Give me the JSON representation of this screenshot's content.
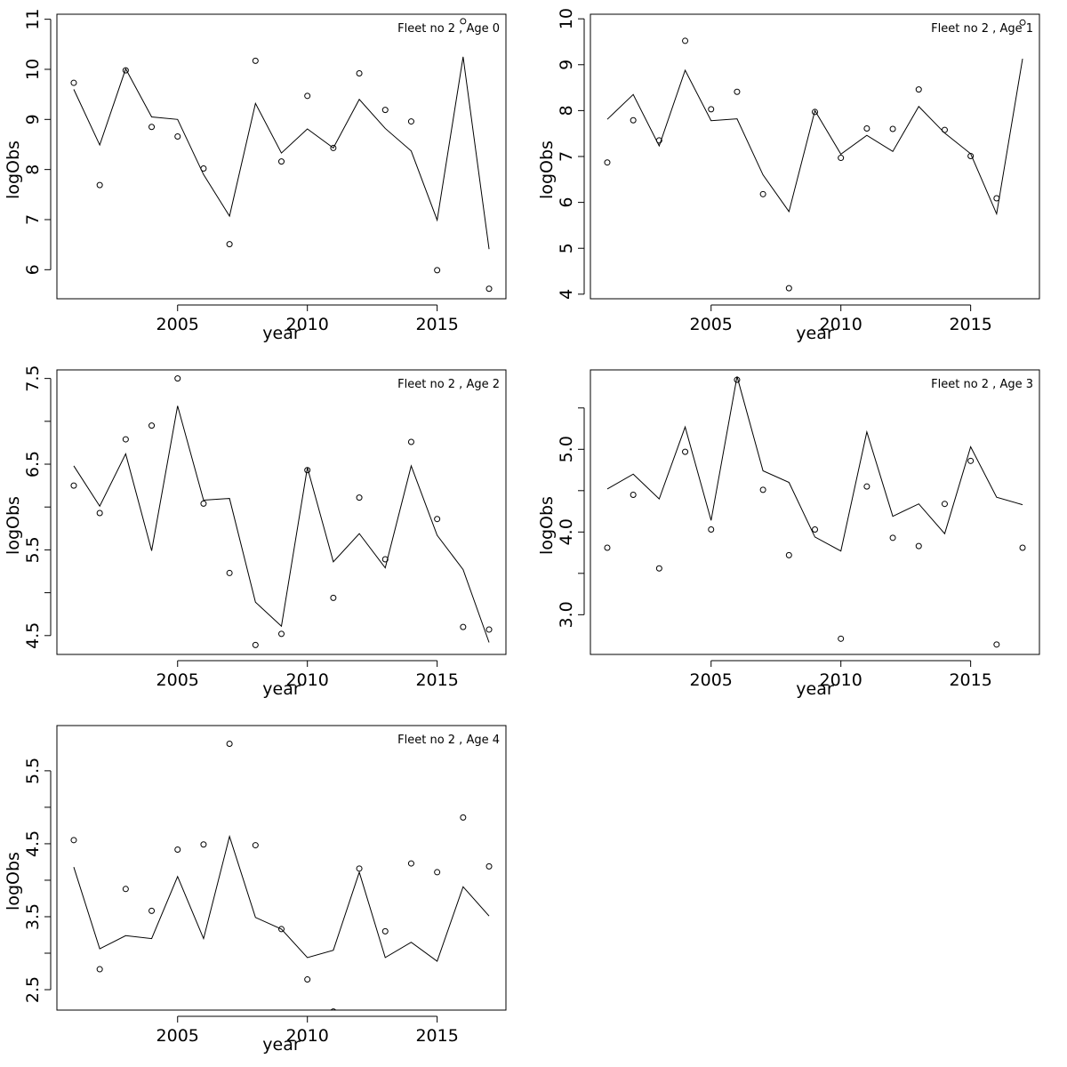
{
  "chart_data": [
    {
      "type": "line",
      "title": "Fleet no 2 , Age 0",
      "xlabel": "year",
      "ylabel": "logObs",
      "xlim": [
        2000.35,
        2017.65
      ],
      "ylim": [
        5.42,
        11.1
      ],
      "x_ticks": [
        2005,
        2010,
        2015
      ],
      "y_ticks": [
        6,
        7,
        8,
        9,
        10,
        11
      ],
      "years": [
        2001,
        2002,
        2003,
        2004,
        2005,
        2006,
        2007,
        2008,
        2009,
        2010,
        2011,
        2012,
        2013,
        2014,
        2015,
        2016,
        2017
      ],
      "series": [
        {
          "name": "observed",
          "values": [
            9.73,
            7.69,
            9.98,
            8.85,
            8.66,
            8.02,
            6.51,
            10.17,
            8.16,
            9.47,
            8.43,
            9.92,
            9.19,
            8.96,
            5.99,
            10.96,
            5.62
          ]
        },
        {
          "name": "fitted",
          "values": [
            9.6,
            8.49,
            10.01,
            9.05,
            9.0,
            7.9,
            7.07,
            9.32,
            8.33,
            8.81,
            8.43,
            9.4,
            8.82,
            8.37,
            6.99,
            10.25,
            6.41
          ]
        }
      ],
      "grid": false
    },
    {
      "type": "line",
      "title": "Fleet no 2 , Age 1",
      "xlabel": "year",
      "ylabel": "logObs",
      "xlim": [
        2000.35,
        2017.65
      ],
      "ylim": [
        3.9,
        10.1
      ],
      "x_ticks": [
        2005,
        2010,
        2015
      ],
      "y_ticks": [
        4,
        5,
        6,
        7,
        8,
        9,
        10
      ],
      "years": [
        2001,
        2002,
        2003,
        2004,
        2005,
        2006,
        2007,
        2008,
        2009,
        2010,
        2011,
        2012,
        2013,
        2014,
        2015,
        2016,
        2017
      ],
      "series": [
        {
          "name": "observed",
          "values": [
            6.87,
            7.79,
            7.35,
            9.52,
            8.03,
            8.41,
            6.18,
            4.13,
            7.97,
            6.97,
            7.61,
            7.6,
            8.46,
            7.58,
            7.01,
            6.09,
            9.92
          ]
        },
        {
          "name": "fitted",
          "values": [
            7.81,
            8.35,
            7.23,
            8.88,
            7.78,
            7.82,
            6.6,
            5.8,
            8.0,
            7.05,
            7.46,
            7.11,
            8.09,
            7.51,
            7.06,
            5.75,
            9.13
          ]
        }
      ],
      "grid": false
    },
    {
      "type": "line",
      "title": "Fleet no 2 , Age 2",
      "xlabel": "year",
      "ylabel": "logObs",
      "xlim": [
        2000.35,
        2017.65
      ],
      "ylim": [
        4.28,
        7.6
      ],
      "x_ticks": [
        2005,
        2010,
        2015
      ],
      "y_ticks": [
        4.5,
        5,
        5.5,
        6,
        6.5,
        7,
        7.5
      ],
      "y_tick_labels": [
        "4.5",
        "",
        "5.5",
        "",
        "6.5",
        "",
        "7.5"
      ],
      "years": [
        2001,
        2002,
        2003,
        2004,
        2005,
        2006,
        2007,
        2008,
        2009,
        2010,
        2011,
        2012,
        2013,
        2014,
        2015,
        2016,
        2017
      ],
      "series": [
        {
          "name": "observed",
          "values": [
            6.25,
            5.93,
            6.79,
            6.95,
            7.5,
            6.04,
            5.23,
            4.39,
            4.52,
            6.43,
            4.94,
            6.11,
            5.39,
            6.76,
            5.86,
            4.6,
            4.57
          ]
        },
        {
          "name": "fitted",
          "values": [
            6.48,
            6.01,
            6.62,
            5.49,
            7.18,
            6.08,
            6.1,
            4.89,
            4.61,
            6.46,
            5.36,
            5.69,
            5.29,
            6.48,
            5.67,
            5.27,
            4.42
          ]
        }
      ],
      "grid": false
    },
    {
      "type": "line",
      "title": "Fleet no 2 , Age 3",
      "xlabel": "year",
      "ylabel": "logObs",
      "xlim": [
        2000.35,
        2017.65
      ],
      "ylim": [
        2.52,
        5.96
      ],
      "x_ticks": [
        2005,
        2010,
        2015
      ],
      "y_ticks": [
        3.0,
        3.5,
        4.0,
        4.5,
        5.0,
        5.5
      ],
      "y_tick_labels": [
        "3.0",
        "",
        "4.0",
        "",
        "5.0",
        ""
      ],
      "years": [
        2001,
        2002,
        2003,
        2004,
        2005,
        2006,
        2007,
        2008,
        2009,
        2010,
        2011,
        2012,
        2013,
        2014,
        2015,
        2016,
        2017
      ],
      "series": [
        {
          "name": "observed",
          "values": [
            3.81,
            4.45,
            3.56,
            4.97,
            4.03,
            5.84,
            4.51,
            3.72,
            4.03,
            2.71,
            4.55,
            3.93,
            3.83,
            4.34,
            4.86,
            2.64,
            3.81
          ]
        },
        {
          "name": "fitted",
          "values": [
            4.52,
            4.7,
            4.4,
            5.27,
            4.14,
            5.88,
            4.74,
            4.6,
            3.94,
            3.77,
            5.21,
            4.19,
            4.34,
            3.98,
            5.03,
            4.42,
            4.33
          ]
        }
      ],
      "grid": false
    },
    {
      "type": "line",
      "title": "Fleet no 2 , Age 4",
      "xlabel": "year",
      "ylabel": "logObs",
      "xlim": [
        2000.35,
        2017.65
      ],
      "ylim": [
        2.22,
        6.12
      ],
      "x_ticks": [
        2005,
        2010,
        2015
      ],
      "y_ticks": [
        2.5,
        3,
        3.5,
        4,
        4.5,
        5,
        5.5
      ],
      "y_tick_labels": [
        "2.5",
        "",
        "3.5",
        "",
        "4.5",
        "",
        "5.5"
      ],
      "years": [
        2001,
        2002,
        2003,
        2004,
        2005,
        2006,
        2007,
        2008,
        2009,
        2010,
        2011,
        2012,
        2013,
        2014,
        2015,
        2016,
        2017
      ],
      "series": [
        {
          "name": "observed",
          "values": [
            4.55,
            2.78,
            3.88,
            3.58,
            4.42,
            4.49,
            5.87,
            4.48,
            3.33,
            2.64,
            2.2,
            4.16,
            3.3,
            4.23,
            4.11,
            4.86,
            4.19
          ]
        },
        {
          "name": "fitted",
          "values": [
            4.18,
            3.06,
            3.24,
            3.2,
            4.05,
            3.2,
            4.6,
            3.49,
            3.33,
            2.94,
            3.04,
            4.11,
            2.94,
            3.15,
            2.89,
            3.91,
            3.51
          ]
        }
      ],
      "grid": false
    }
  ]
}
